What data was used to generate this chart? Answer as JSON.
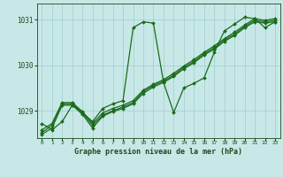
{
  "xlabel": "Graphe pression niveau de la mer (hPa)",
  "background_color": "#c8e8e8",
  "grid_color": "#9ecece",
  "line_color": "#1a6b1a",
  "marker": "D",
  "markersize": 2.0,
  "linewidth": 0.9,
  "ylim": [
    1028.4,
    1031.35
  ],
  "xlim": [
    -0.5,
    23.5
  ],
  "yticks": [
    1029,
    1030,
    1031
  ],
  "xticks": [
    0,
    1,
    2,
    3,
    4,
    5,
    6,
    7,
    8,
    9,
    10,
    11,
    12,
    13,
    14,
    15,
    16,
    17,
    18,
    19,
    20,
    21,
    22,
    23
  ],
  "series": [
    [
      1028.72,
      1028.58,
      1028.76,
      1029.12,
      1028.96,
      1028.76,
      1029.05,
      1029.15,
      1029.22,
      1030.82,
      1030.95,
      1030.92,
      1029.62,
      1028.96,
      1029.5,
      1029.6,
      1029.72,
      1030.28,
      1030.75,
      1030.9,
      1031.05,
      1031.02,
      1030.82,
      1030.95
    ],
    [
      1028.58,
      1028.72,
      1029.18,
      1029.18,
      1028.98,
      1028.72,
      1028.95,
      1029.05,
      1029.12,
      1029.22,
      1029.45,
      1029.58,
      1029.68,
      1029.82,
      1029.98,
      1030.12,
      1030.28,
      1030.42,
      1030.58,
      1030.72,
      1030.88,
      1031.02,
      1030.98,
      1031.02
    ],
    [
      1028.52,
      1028.68,
      1029.15,
      1029.15,
      1028.95,
      1028.68,
      1028.9,
      1029.0,
      1029.08,
      1029.18,
      1029.42,
      1029.55,
      1029.65,
      1029.78,
      1029.95,
      1030.08,
      1030.25,
      1030.38,
      1030.55,
      1030.68,
      1030.85,
      1030.98,
      1030.95,
      1030.98
    ],
    [
      1028.48,
      1028.62,
      1029.12,
      1029.12,
      1028.92,
      1028.62,
      1028.88,
      1028.98,
      1029.05,
      1029.15,
      1029.38,
      1029.52,
      1029.62,
      1029.75,
      1029.92,
      1030.05,
      1030.22,
      1030.35,
      1030.52,
      1030.65,
      1030.82,
      1030.95,
      1030.92,
      1030.95
    ]
  ]
}
